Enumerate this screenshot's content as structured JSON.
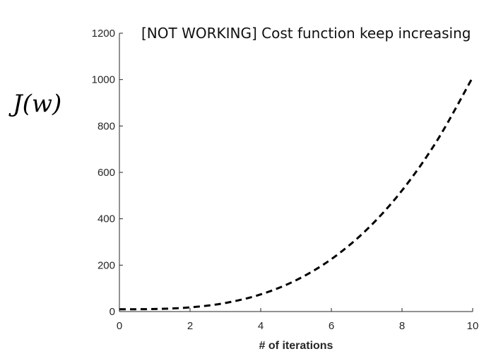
{
  "chart_data": {
    "type": "line",
    "title": "[NOT WORKING] Cost function keep increasing",
    "xlabel": "# of iterations",
    "ylabel": "J(w)",
    "xlim": [
      0,
      10
    ],
    "ylim": [
      0,
      1200
    ],
    "xticks": [
      "0",
      "2",
      "4",
      "6",
      "8",
      "10"
    ],
    "yticks": [
      "0",
      "200",
      "400",
      "600",
      "800",
      "1000",
      "1200"
    ],
    "grid": false,
    "line_style": "dashed",
    "line_color": "#000000",
    "series": [
      {
        "x": [
          0,
          1,
          2,
          3,
          4,
          5,
          6,
          7,
          8,
          9,
          10
        ],
        "values": [
          10,
          11,
          18,
          37,
          74,
          135,
          226,
          353,
          522,
          739,
          1010
        ]
      }
    ]
  }
}
